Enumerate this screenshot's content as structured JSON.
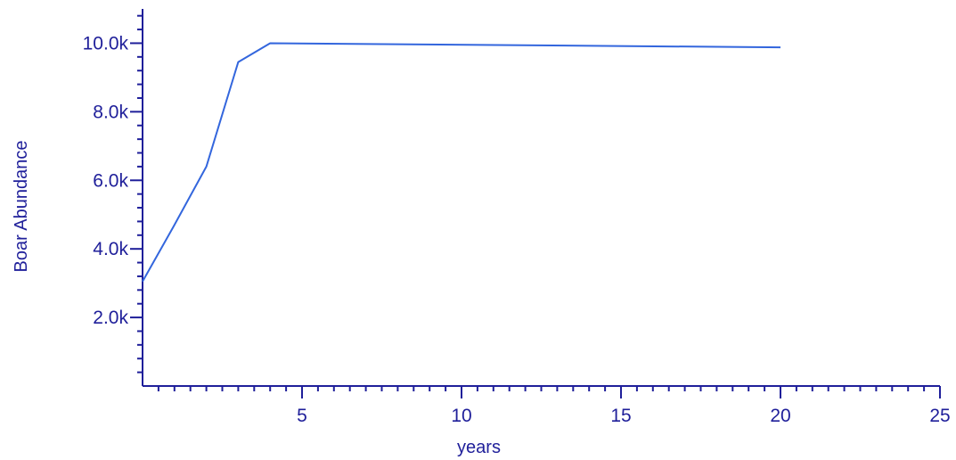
{
  "chart_data": {
    "type": "line",
    "title": "",
    "xlabel": "years",
    "ylabel": "Boar Abundance",
    "xlim": [
      0,
      25
    ],
    "ylim": [
      0,
      11000
    ],
    "x_ticks": [
      5,
      10,
      15,
      20,
      25
    ],
    "x_tick_labels": [
      "5",
      "10",
      "15",
      "20",
      "25"
    ],
    "y_ticks": [
      2000,
      4000,
      6000,
      8000,
      10000
    ],
    "y_tick_labels": [
      "2.0k",
      "4.0k",
      "6.0k",
      "8.0k",
      "10.0k"
    ],
    "grid": false,
    "series": [
      {
        "color": "#3366dd",
        "x": [
          0,
          1,
          2,
          3,
          4,
          20
        ],
        "y": [
          3050,
          4700,
          6400,
          9450,
          10000,
          9880
        ]
      }
    ]
  },
  "colors": {
    "axis": "#1f1f9a",
    "line": "#3366dd"
  }
}
